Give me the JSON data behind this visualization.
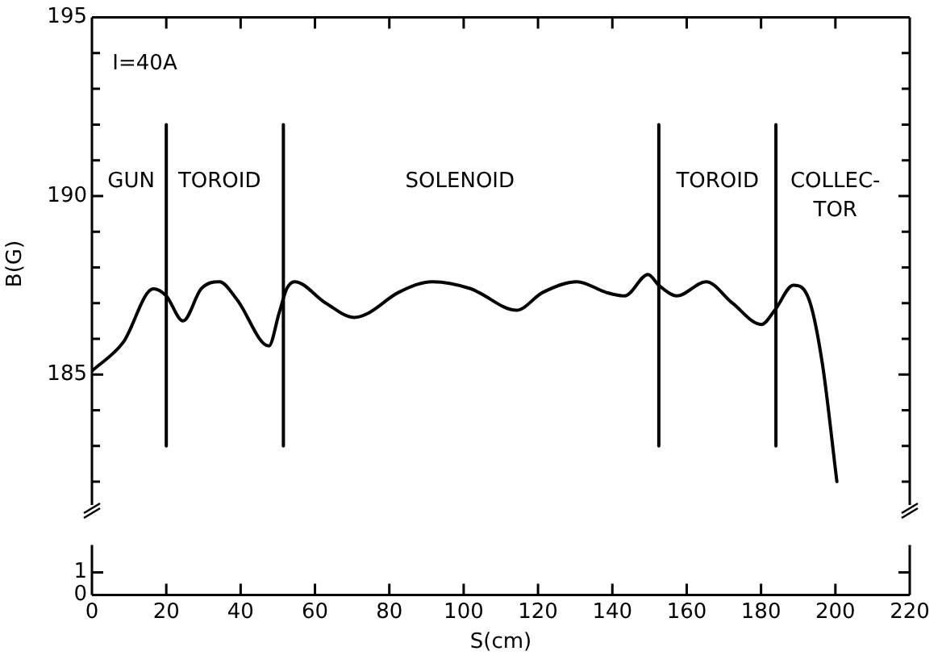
{
  "chart_data": [
    {
      "type": "line",
      "ylabel": "B(G)",
      "xlim": [
        0,
        220
      ],
      "xticks": [
        0,
        20,
        40,
        60,
        80,
        100,
        120,
        140,
        160,
        180,
        200,
        220
      ],
      "ylim": [
        181.2,
        195
      ],
      "yticks": [
        {
          "value": 182,
          "label": null
        },
        {
          "value": 183,
          "label": null
        },
        {
          "value": 184,
          "label": null
        },
        185,
        {
          "value": 186,
          "label": null
        },
        {
          "value": 187,
          "label": null
        },
        {
          "value": 188,
          "label": null
        },
        {
          "value": 189,
          "label": null
        },
        190,
        {
          "value": 191,
          "label": null
        },
        {
          "value": 192,
          "label": null
        },
        {
          "value": 193,
          "label": null
        },
        {
          "value": 194,
          "label": null
        },
        195
      ],
      "tick_labels": "y",
      "legend": false,
      "grid": false,
      "marker": "none",
      "line_style": "solid",
      "annotations": [
        "I=40A",
        "GUN",
        "TOROID",
        "SOLENOID",
        "TOROID",
        "COLLEC-\nTOR"
      ],
      "series": [
        {
          "color": "#000000",
          "x": [
            0,
            8.4,
            16.5,
            20,
            24.5,
            29.4,
            34.3,
            39,
            47.6,
            50.3,
            52.4,
            54.5,
            62.9,
            70.6,
            74,
            82.5,
            91.6,
            102,
            104,
            114.2,
            121.3,
            130.5,
            138.3,
            143.3,
            149.6,
            152.5,
            157.4,
            165.2,
            172.3,
            180.1,
            183.7,
            188.7,
            192.9,
            196.5,
            200.4
          ],
          "values": [
            185.1,
            185.9,
            187.4,
            187.2,
            186.5,
            187.4,
            187.6,
            187.1,
            185.8,
            186.7,
            187.4,
            187.6,
            187.0,
            186.6,
            186.7,
            187.3,
            187.6,
            187.4,
            187.3,
            186.8,
            187.3,
            187.6,
            187.3,
            187.2,
            187.8,
            187.5,
            187.2,
            187.6,
            187.0,
            186.4,
            186.8,
            187.5,
            187.1,
            185.3,
            182.0
          ]
        },
        {
          "color": "#000000",
          "x": [
            20,
            20
          ],
          "values": [
            183,
            192
          ]
        },
        {
          "color": "#000000",
          "x": [
            51.5,
            51.5
          ],
          "values": [
            183,
            192
          ]
        },
        {
          "color": "#000000",
          "x": [
            152.5,
            152.5
          ],
          "values": [
            183,
            192
          ]
        },
        {
          "color": "#000000",
          "x": [
            184,
            184
          ],
          "values": [
            183,
            192
          ]
        }
      ]
    },
    {
      "type": "line",
      "xlabel": "S(cm)",
      "xlim": [
        0,
        220
      ],
      "xticks": [
        0,
        20,
        40,
        60,
        80,
        100,
        120,
        140,
        160,
        180,
        200,
        220
      ],
      "ylim": [
        0,
        2.2
      ],
      "yticks": [
        0,
        1
      ],
      "legend": false,
      "grid": false
    }
  ]
}
